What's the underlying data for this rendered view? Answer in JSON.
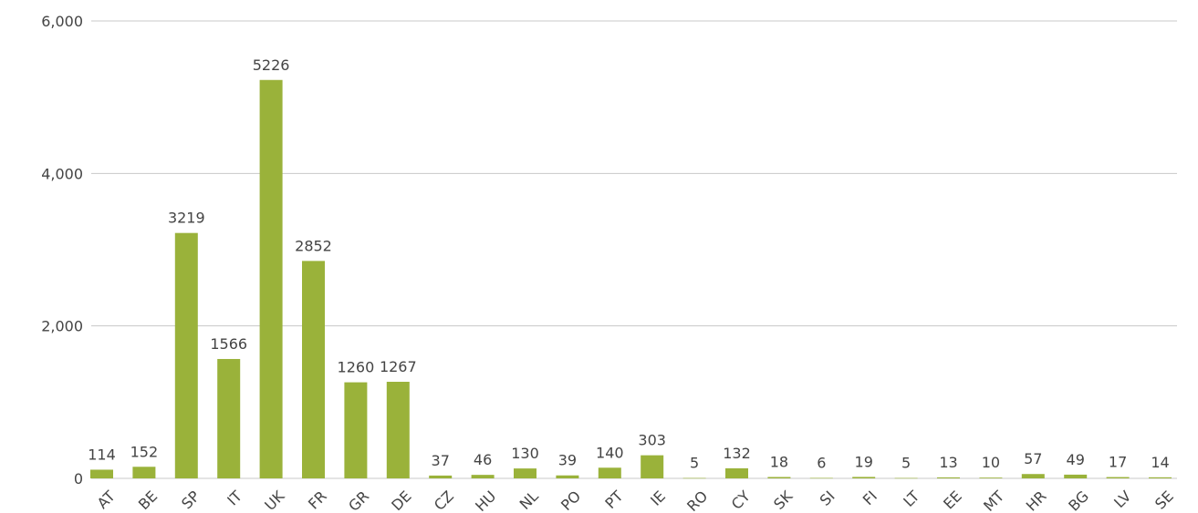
{
  "chart_data": {
    "type": "bar",
    "title": "",
    "xlabel": "",
    "ylabel": "",
    "ylim": [
      0,
      6000
    ],
    "yticks": [
      0,
      2000,
      4000,
      6000
    ],
    "ytick_labels": [
      "0",
      "2,000",
      "4,000",
      "6,000"
    ],
    "grid": true,
    "bar_color": "#9ab23a",
    "categories": [
      "AT",
      "BE",
      "SP",
      "IT",
      "UK",
      "FR",
      "GR",
      "DE",
      "CZ",
      "HU",
      "NL",
      "PO",
      "PT",
      "IE",
      "RO",
      "CY",
      "SK",
      "SI",
      "FI",
      "LT",
      "EE",
      "MT",
      "HR",
      "BG",
      "LV",
      "SE"
    ],
    "values": [
      114,
      152,
      3219,
      1566,
      5226,
      2852,
      1260,
      1267,
      37,
      46,
      130,
      39,
      140,
      303,
      5,
      132,
      18,
      6,
      19,
      5,
      13,
      10,
      57,
      49,
      17,
      14
    ]
  }
}
